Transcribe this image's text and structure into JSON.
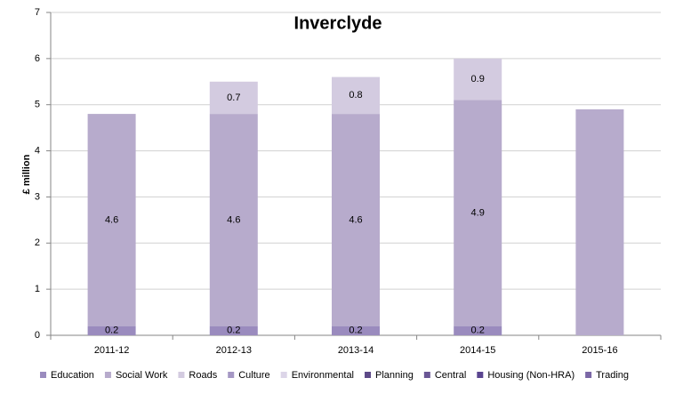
{
  "chart_data": {
    "type": "stacked_bar",
    "title": "Inverclyde",
    "y_label": "£ million",
    "categories": [
      "2011-12",
      "2012-13",
      "2013-14",
      "2014-15",
      "2015-16"
    ],
    "series": [
      {
        "name": "Education",
        "color": "#9a8bbe",
        "values": [
          0.2,
          0.2,
          0.2,
          0.2,
          null
        ],
        "value_labels": [
          "0.2",
          "0.2",
          "0.2",
          "0.2",
          null
        ]
      },
      {
        "name": "Social Work",
        "color": "#b7abcc",
        "values": [
          4.6,
          4.6,
          4.6,
          4.9,
          4.9
        ],
        "value_labels": [
          "4.6",
          "4.6",
          "4.6",
          "4.9",
          null
        ]
      },
      {
        "name": "Roads",
        "color": "#d3cbe0",
        "values": [
          null,
          0.7,
          0.8,
          0.9,
          null
        ],
        "value_labels": [
          null,
          "0.7",
          "0.8",
          "0.9",
          null
        ]
      },
      {
        "name": "Culture",
        "color": "#a597c4",
        "values": [
          null,
          null,
          null,
          null,
          null
        ]
      },
      {
        "name": "Environmental",
        "color": "#dcd5e8",
        "values": [
          null,
          null,
          null,
          null,
          null
        ]
      },
      {
        "name": "Planning",
        "color": "#5d4a88",
        "values": [
          null,
          null,
          null,
          null,
          null
        ]
      },
      {
        "name": "Central",
        "color": "#6a5795",
        "values": [
          null,
          null,
          null,
          null,
          null
        ]
      },
      {
        "name": "Housing (Non-HRA)",
        "color": "#5a4590",
        "values": [
          null,
          null,
          null,
          null,
          null
        ]
      },
      {
        "name": "Trading",
        "color": "#7b67a6",
        "values": [
          null,
          null,
          null,
          null,
          null
        ]
      }
    ],
    "ylim": [
      0,
      7
    ],
    "yticks": [
      0,
      1,
      2,
      3,
      4,
      5,
      6,
      7
    ],
    "grid": true
  }
}
